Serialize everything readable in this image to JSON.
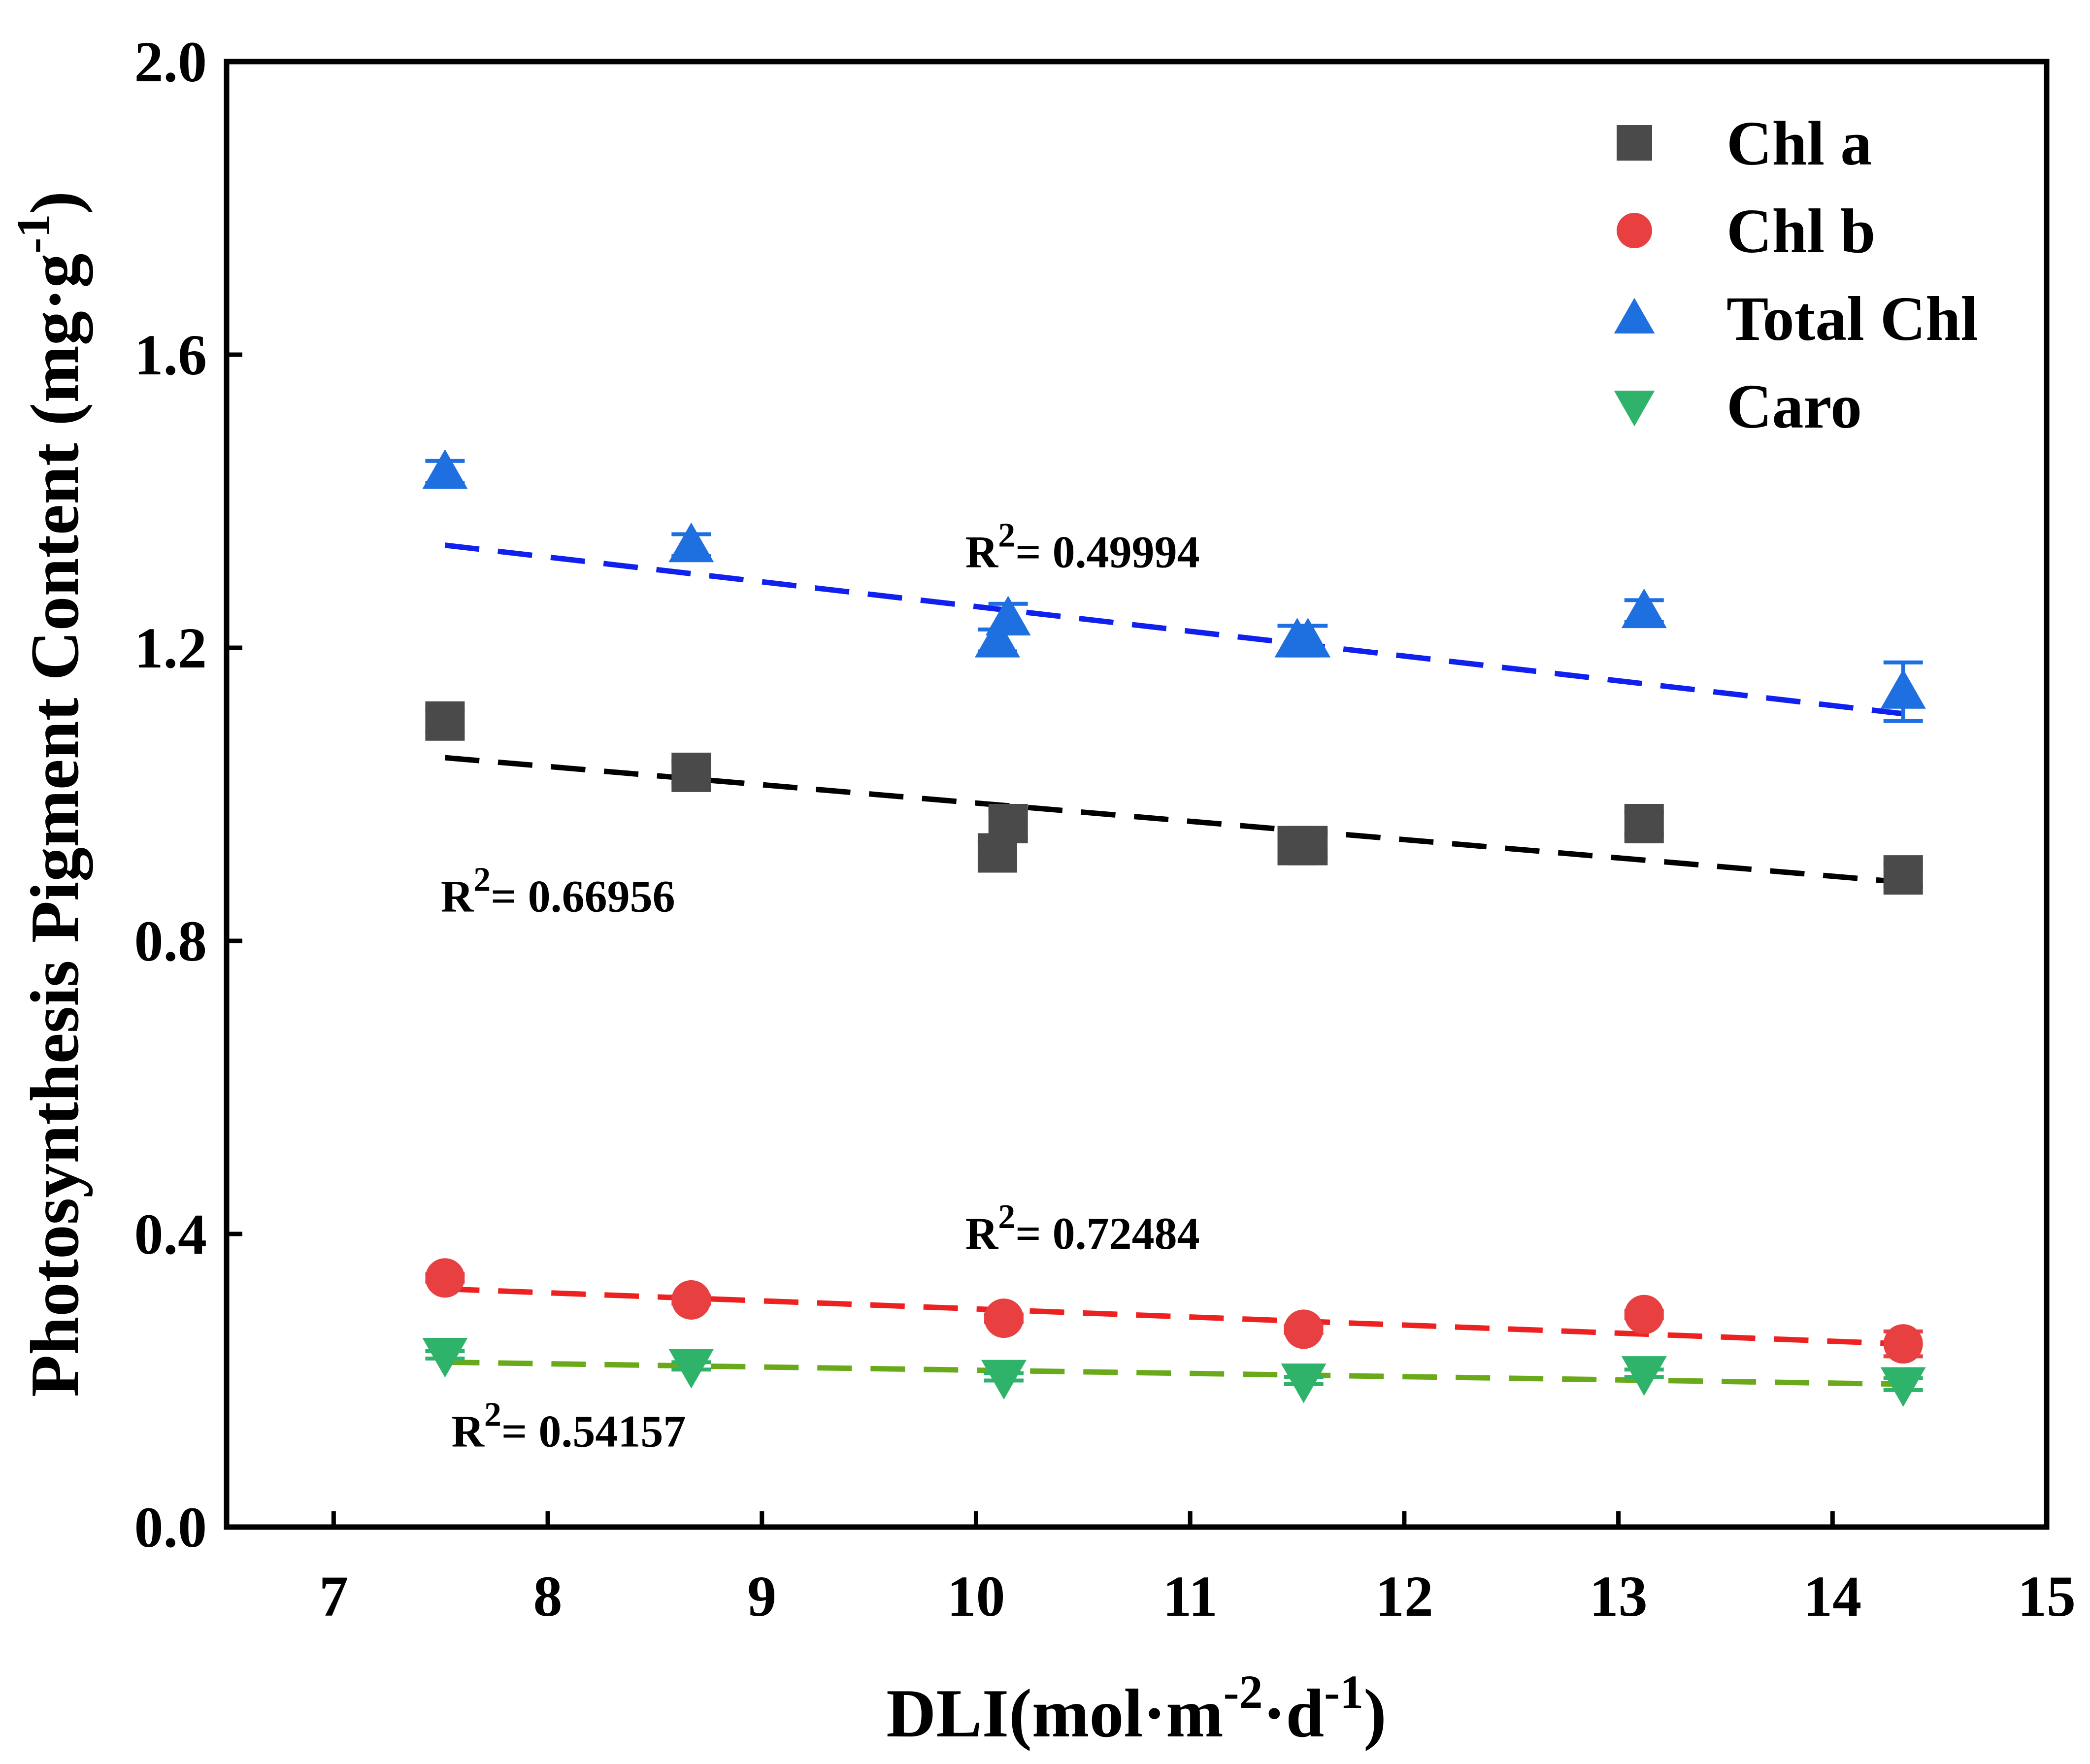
{
  "chart_data": {
    "type": "scatter",
    "title": "",
    "xlabel": {
      "base": "DLI(mol·m",
      "sup1": "-2",
      "mid": "·d",
      "sup2": "-1",
      "end": ")"
    },
    "ylabel": {
      "base": "Photosynthesis Pigment Content (mg·g",
      "sup": "-1",
      "end": ")"
    },
    "xlim": [
      6.5,
      15
    ],
    "ylim": [
      0,
      2.0
    ],
    "x_ticks": [
      7,
      8,
      9,
      10,
      11,
      12,
      13,
      14,
      15
    ],
    "x_tick_labels": [
      "7",
      "8",
      "9",
      "10",
      "11",
      "12",
      "13",
      "14",
      "15"
    ],
    "y_ticks": [
      0,
      0.4,
      0.8,
      1.2,
      1.6,
      2.0
    ],
    "y_tick_labels": [
      "0.0",
      "0.4",
      "0.8",
      "1.2",
      "1.6",
      "2.0"
    ],
    "grid": false,
    "legend_position": "top-right",
    "series": [
      {
        "name": "Chl a",
        "marker": "square",
        "color": "#4a4a4a",
        "fit_color": "#000000",
        "x": [
          7.52,
          8.67,
          10.1,
          10.15,
          11.5,
          11.55,
          13.12,
          14.33
        ],
        "y": [
          1.1,
          1.03,
          0.92,
          0.96,
          0.93,
          0.93,
          0.96,
          0.89
        ],
        "err": [
          0.015,
          0.015,
          0.015,
          0.02,
          0.015,
          0.015,
          0.015,
          0.015
        ],
        "fit": {
          "x": [
            7.52,
            14.33
          ],
          "y": [
            1.05,
            0.88
          ]
        },
        "r2": {
          "prefix": "R",
          "sup": "2",
          "value": "= 0.66956",
          "at": [
            7.5,
            0.84
          ]
        }
      },
      {
        "name": "Chl b",
        "marker": "circle",
        "color": "#e84040",
        "fit_color": "#ee2020",
        "x": [
          7.52,
          8.67,
          10.13,
          11.53,
          13.12,
          14.33
        ],
        "y": [
          0.34,
          0.31,
          0.285,
          0.27,
          0.29,
          0.25
        ],
        "err": [
          0.005,
          0.005,
          0.005,
          0.005,
          0.005,
          0.017
        ],
        "fit": {
          "x": [
            7.52,
            14.33
          ],
          "y": [
            0.325,
            0.25
          ]
        },
        "r2": {
          "prefix": "R",
          "sup": "2",
          "value": "= 0.72484",
          "at": [
            9.95,
            0.38
          ]
        }
      },
      {
        "name": "Total Chl",
        "marker": "triangle-up",
        "color": "#1e6fe0",
        "fit_color": "#1020ee",
        "x": [
          7.52,
          8.67,
          10.1,
          10.15,
          11.5,
          11.55,
          13.12,
          14.33
        ],
        "y": [
          1.44,
          1.34,
          1.21,
          1.24,
          1.21,
          1.21,
          1.25,
          1.14
        ],
        "err": [
          0.015,
          0.015,
          0.015,
          0.02,
          0.02,
          0.02,
          0.015,
          0.04
        ],
        "fit": {
          "x": [
            7.52,
            14.33
          ],
          "y": [
            1.34,
            1.11
          ]
        },
        "r2": {
          "prefix": "R",
          "sup": "2",
          "value": "= 0.49994",
          "at": [
            9.95,
            1.31
          ]
        }
      },
      {
        "name": "Caro",
        "marker": "triangle-down",
        "color": "#2fb36a",
        "fit_color": "#6aaa1a",
        "x": [
          7.52,
          8.67,
          10.13,
          11.53,
          13.12,
          14.33
        ],
        "y": [
          0.235,
          0.22,
          0.205,
          0.2,
          0.21,
          0.195
        ],
        "err": [
          0.005,
          0.005,
          0.005,
          0.005,
          0.005,
          0.008
        ],
        "fit": {
          "x": [
            7.52,
            14.33
          ],
          "y": [
            0.225,
            0.195
          ]
        },
        "r2": {
          "prefix": "R",
          "sup": "2",
          "value": "= 0.54157",
          "at": [
            7.55,
            0.11
          ]
        }
      }
    ]
  }
}
